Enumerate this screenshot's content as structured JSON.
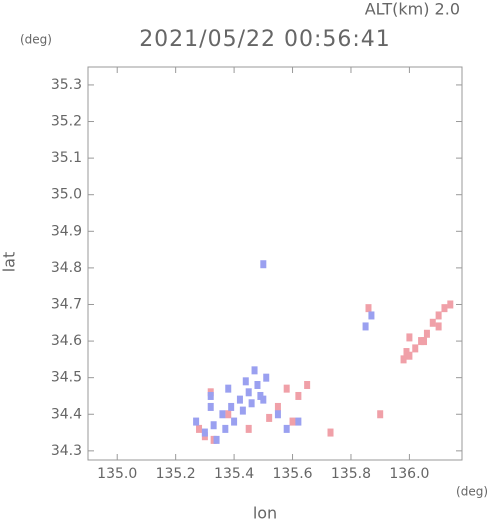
{
  "chart_data": {
    "type": "scatter",
    "title": "2021/05/22 00:56:41",
    "subtitle": "ALT(km) 2.0",
    "y_unit": "(deg)",
    "x_unit": "(deg)",
    "x_label": "lon",
    "y_label": "lat",
    "xlim": [
      134.9,
      136.18
    ],
    "ylim": [
      34.275,
      35.349
    ],
    "xticks": [
      {
        "value": 135,
        "label": "135.0"
      },
      135.2,
      135.4,
      135.6,
      135.8,
      {
        "value": 136,
        "label": "136.0"
      }
    ],
    "yticks": [
      34.3,
      34.4,
      34.5,
      34.6,
      34.7,
      34.8,
      34.9,
      {
        "value": 35,
        "label": "35.0"
      },
      35.1,
      35.2,
      35.3
    ],
    "series": [
      {
        "color": "#f0a0a8",
        "x": [
          136.12,
          136.1,
          136.08,
          136.06,
          136.04,
          136.02,
          136.0,
          135.98,
          136.14,
          136.1,
          136.05,
          136.0,
          135.99,
          135.3,
          135.28,
          135.33,
          135.38,
          135.6,
          135.62,
          135.65,
          135.73,
          135.55,
          135.58,
          135.52,
          135.45,
          135.9,
          135.86,
          135.32
        ],
        "y": [
          34.69,
          34.67,
          34.65,
          34.62,
          34.6,
          34.58,
          34.56,
          34.55,
          34.7,
          34.64,
          34.6,
          34.61,
          34.57,
          34.34,
          34.36,
          34.33,
          34.4,
          34.38,
          34.45,
          34.48,
          34.35,
          34.42,
          34.47,
          34.39,
          34.36,
          34.4,
          34.69,
          34.46
        ]
      },
      {
        "color": "#9aa0f0",
        "x": [
          135.3,
          135.33,
          135.36,
          135.39,
          135.42,
          135.45,
          135.48,
          135.51,
          135.34,
          135.37,
          135.4,
          135.43,
          135.46,
          135.49,
          135.27,
          135.32,
          135.38,
          135.44,
          135.5,
          135.55,
          135.58,
          135.62,
          135.5,
          135.87,
          135.85,
          135.32,
          135.47
        ],
        "y": [
          34.35,
          34.37,
          34.4,
          34.42,
          34.44,
          34.46,
          34.48,
          34.5,
          34.33,
          34.36,
          34.38,
          34.41,
          34.43,
          34.45,
          34.38,
          34.42,
          34.47,
          34.49,
          34.44,
          34.4,
          34.36,
          34.38,
          34.81,
          34.67,
          34.64,
          34.45,
          34.52
        ]
      }
    ]
  }
}
